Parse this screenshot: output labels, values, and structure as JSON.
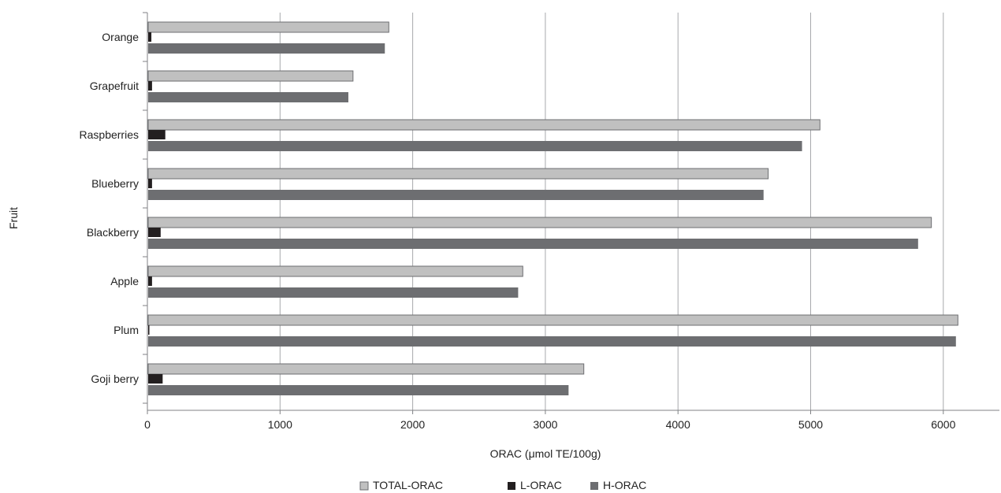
{
  "chart_data": {
    "type": "bar",
    "orientation": "horizontal",
    "title": "",
    "xlabel": "ORAC (μmol TE/100g)",
    "ylabel": "Fruit",
    "xlim": [
      0,
      6500
    ],
    "xticks": [
      0,
      1000,
      2000,
      3000,
      4000,
      5000,
      6000
    ],
    "grid": true,
    "legend_position": "bottom",
    "categories": [
      "Orange",
      "Grapefruit",
      "Raspberries",
      "Blueberry",
      "Blackberry",
      "Apple",
      "Plum",
      "Goji berry"
    ],
    "series": [
      {
        "name": "TOTAL-ORAC",
        "color": "#c0c0c0",
        "values": [
          1820,
          1550,
          5070,
          4680,
          5910,
          2830,
          6110,
          3290
        ]
      },
      {
        "name": "L-ORAC",
        "color": "#231f20",
        "values": [
          30,
          35,
          135,
          35,
          100,
          35,
          15,
          115
        ]
      },
      {
        "name": "H-ORAC",
        "color": "#6d6e71",
        "values": [
          1790,
          1515,
          4935,
          4645,
          5810,
          2795,
          6095,
          3175
        ]
      }
    ]
  }
}
